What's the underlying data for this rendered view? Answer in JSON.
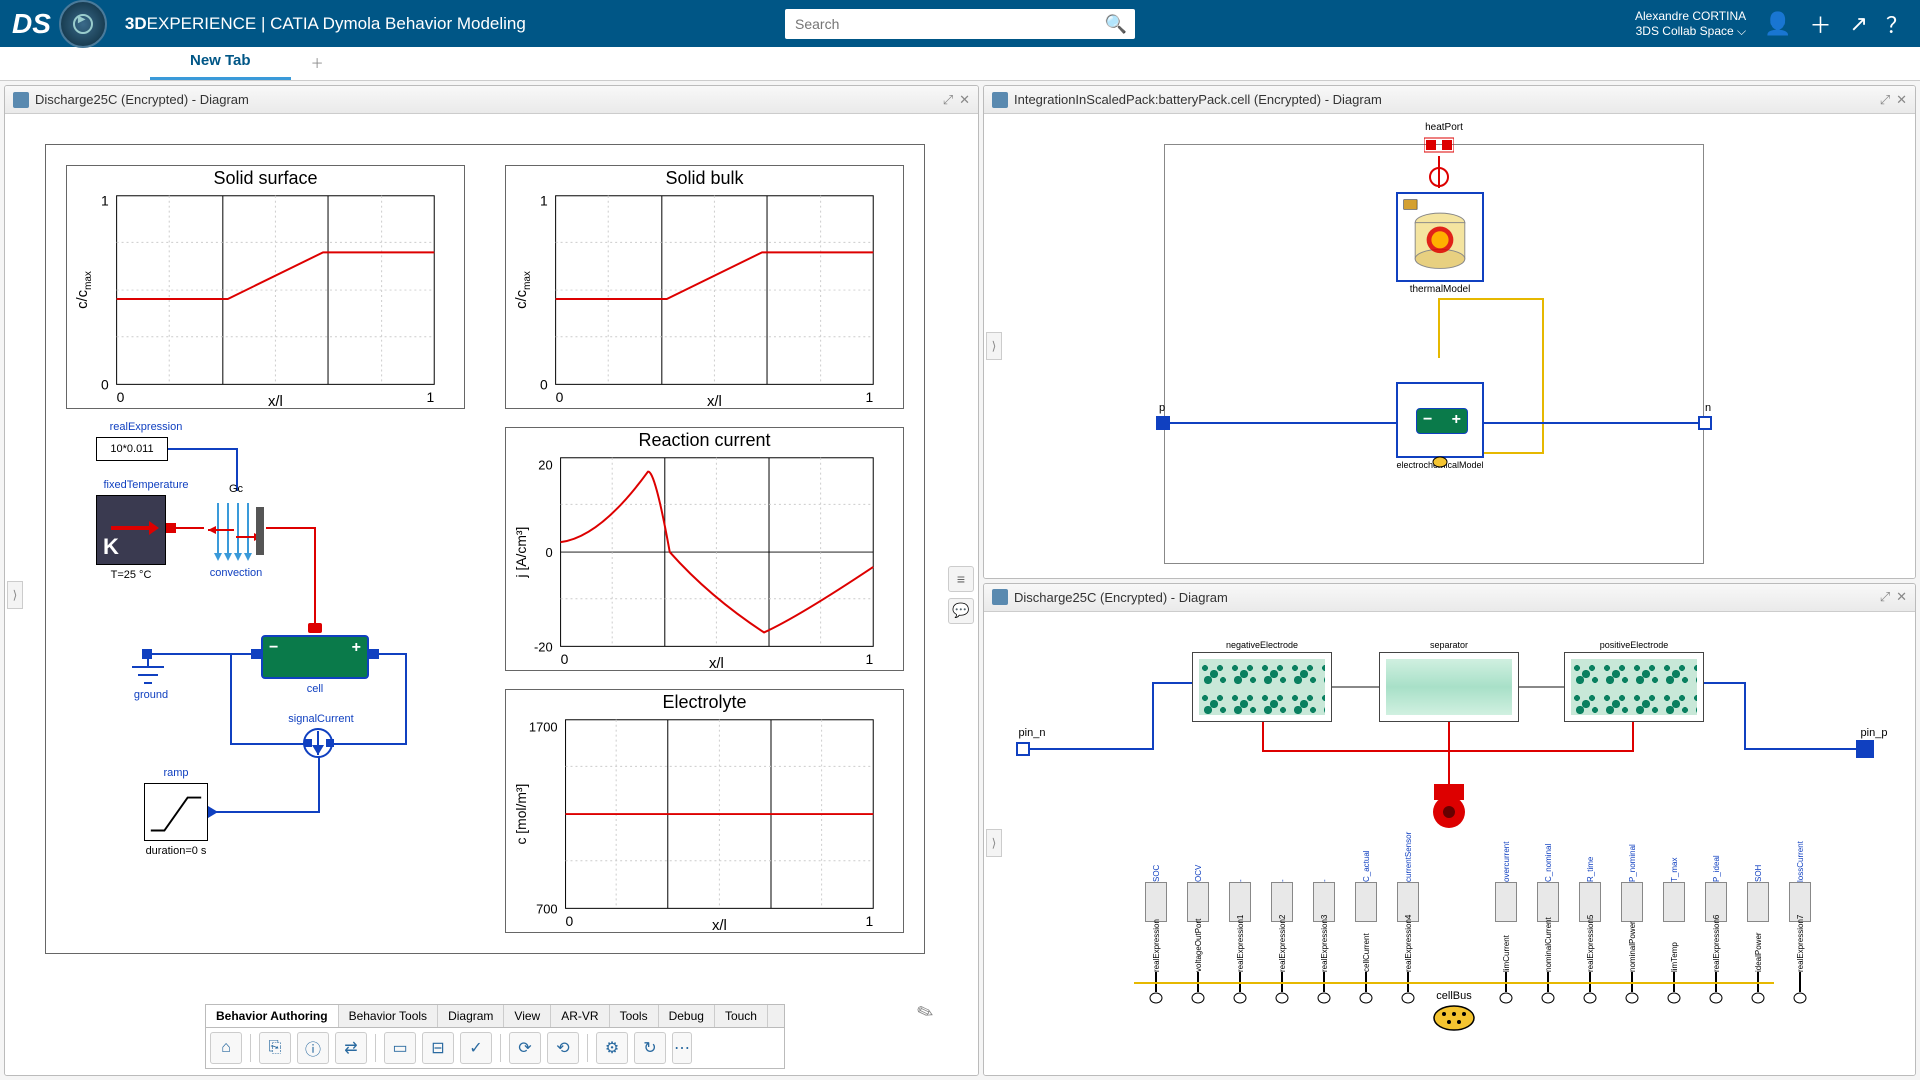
{
  "header": {
    "brand_prefix": "3D",
    "brand_rest": "EXPERIENCE",
    "app": " | CATIA Dymola Behavior Modeling",
    "search_placeholder": "Search",
    "user_name": "Alexandre CORTINA",
    "user_space": "3DS Collab Space",
    "colors": {
      "bg": "#005686"
    }
  },
  "tab": {
    "label": "New Tab"
  },
  "panels": {
    "left": {
      "title": "Discharge25C (Encrypted) - Diagram"
    },
    "top_right": {
      "title": "IntegrationInScaledPack:batteryPack.cell (Encrypted) - Diagram"
    },
    "bottom_right": {
      "title": "Discharge25C (Encrypted) - Diagram"
    }
  },
  "charts": {
    "solid_surface": {
      "title": "Solid surface",
      "xlabel": "x/l",
      "ylabel": "c/c_max",
      "xlim": [
        0,
        1
      ],
      "ylim": [
        0,
        1
      ],
      "xticks": [
        0,
        1
      ],
      "yticks": [
        0,
        1
      ],
      "line_color": "#d00",
      "grid_color": "#bbb",
      "points": [
        [
          0,
          0.45
        ],
        [
          0.35,
          0.45
        ],
        [
          0.65,
          0.7
        ],
        [
          1,
          0.7
        ]
      ]
    },
    "solid_bulk": {
      "title": "Solid bulk",
      "xlabel": "x/l",
      "ylabel": "c/c_max",
      "xlim": [
        0,
        1
      ],
      "ylim": [
        0,
        1
      ],
      "xticks": [
        0,
        1
      ],
      "yticks": [
        0,
        1
      ],
      "line_color": "#d00",
      "grid_color": "#bbb",
      "points": [
        [
          0,
          0.45
        ],
        [
          0.35,
          0.45
        ],
        [
          0.65,
          0.7
        ],
        [
          1,
          0.7
        ]
      ]
    },
    "reaction_current": {
      "title": "Reaction current",
      "xlabel": "x/l",
      "ylabel": "j [A/cm³]",
      "xlim": [
        0,
        1
      ],
      "ylim": [
        -20,
        20
      ],
      "xticks": [
        0,
        1
      ],
      "yticks": [
        -20,
        0,
        20
      ],
      "line_color": "#d00",
      "grid_color": "#bbb",
      "points": [
        [
          0,
          2
        ],
        [
          0.15,
          5
        ],
        [
          0.28,
          17
        ],
        [
          0.35,
          0
        ],
        [
          0.5,
          -9
        ],
        [
          0.65,
          -17
        ],
        [
          0.8,
          -7
        ],
        [
          1,
          -3
        ]
      ]
    },
    "electrolyte": {
      "title": "Electrolyte",
      "xlabel": "x/l",
      "ylabel": "c [mol/m³]",
      "xlim": [
        0,
        1
      ],
      "ylim": [
        700,
        1700
      ],
      "xticks": [
        0,
        1
      ],
      "yticks": [
        700,
        1700
      ],
      "line_color": "#d00",
      "grid_color": "#bbb",
      "points": [
        [
          0,
          1200
        ],
        [
          1,
          1200
        ]
      ]
    }
  },
  "left_diagram": {
    "realExpression": "realExpression",
    "realExpression_value": "10*0.011",
    "fixedTemperature": "fixedTemperature",
    "fixedTemperature_value": "T=25 °C",
    "K_label": "K",
    "Gc": "Gc",
    "convection": "convection",
    "ground": "ground",
    "cell": "cell",
    "signalCurrent": "signalCurrent",
    "ramp": "ramp",
    "ramp_value": "duration=0 s"
  },
  "tr_diagram": {
    "heatPort": "heatPort",
    "thermalModel": "thermalModel",
    "electrochemicalModel": "electrochemicalModel",
    "p": "p",
    "n": "n"
  },
  "br_diagram": {
    "pin_n": "pin_n",
    "pin_p": "pin_p",
    "negativeElectrode": "negativeElectrode",
    "separator": "separator",
    "positiveElectrode": "positiveElectrode",
    "cellBus": "cellBus",
    "sensors": [
      "SOC",
      "OCV",
      "-",
      "-",
      "-",
      "C_actual",
      "currentSensor",
      "overcurrent",
      "C_nominal",
      "R_time",
      "P_nominal",
      "T_max",
      "P_ideal",
      "SOH",
      "lossCurrent"
    ],
    "sensor_sub": [
      "realExpression",
      "voltageOutPort",
      "realExpression1",
      "realExpression2",
      "realExpression3",
      "cellCurrent",
      "realExpression4",
      "limCurrent",
      "nominalCurrent",
      "realExpression5",
      "nominalPower",
      "limTemp",
      "realExpression6",
      "idealPower",
      "realExpression7"
    ]
  },
  "bottom_tabs": [
    "Behavior Authoring",
    "Behavior Tools",
    "Diagram",
    "View",
    "AR-VR",
    "Tools",
    "Debug",
    "Touch"
  ],
  "bottom_active": 0
}
